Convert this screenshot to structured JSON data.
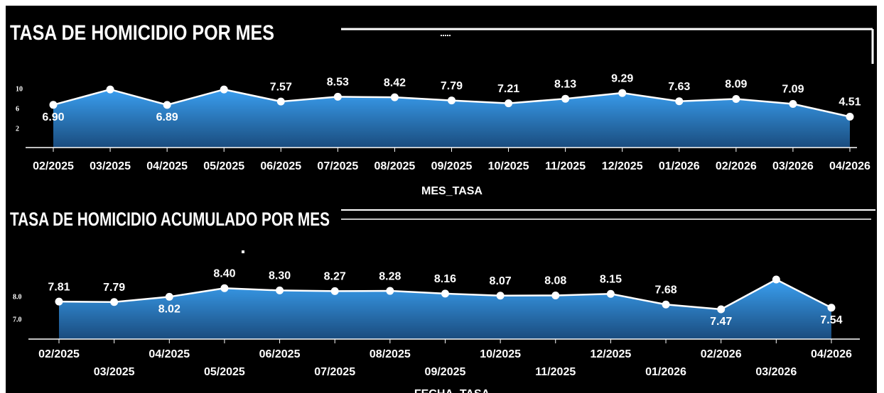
{
  "chart_data": [
    {
      "type": "area",
      "title": "TASA DE HOMICIDIO POR MES",
      "x_label": "MES_TASA",
      "categories": [
        "02/2025",
        "03/2025",
        "04/2025",
        "05/2025",
        "06/2025",
        "07/2025",
        "08/2025",
        "09/2025",
        "10/2025",
        "11/2025",
        "12/2025",
        "01/2026",
        "02/2026",
        "03/2026",
        "04/2026"
      ],
      "values": [
        6.9,
        10.0,
        6.89,
        10.0,
        7.57,
        8.53,
        8.42,
        7.79,
        7.21,
        8.13,
        9.29,
        7.63,
        8.09,
        7.09,
        4.51
      ],
      "value_labels": [
        "6.90",
        null,
        "6.89",
        null,
        "7.57",
        "8.53",
        "8.42",
        "7.79",
        "7.21",
        "8.13",
        "9.29",
        "7.63",
        "8.09",
        "7.09",
        "4.51"
      ],
      "ylim": [
        -1.7,
        12.3
      ],
      "yticks": [
        10,
        6,
        2
      ],
      "color": "#3a9ff0"
    },
    {
      "type": "area",
      "title": "TASA DE HOMICIDIO ACUMULADO POR MES",
      "x_label": "FECHA_TASA",
      "categories": [
        "02/2025",
        "03/2025",
        "04/2025",
        "05/2025",
        "06/2025",
        "07/2025",
        "08/2025",
        "09/2025",
        "10/2025",
        "11/2025",
        "12/2025",
        "01/2026",
        "02/2026",
        "03/2026",
        "04/2026"
      ],
      "values": [
        7.81,
        7.79,
        8.02,
        8.4,
        8.3,
        8.27,
        8.28,
        8.16,
        8.07,
        8.08,
        8.15,
        7.68,
        7.47,
        8.78,
        7.54
      ],
      "value_labels": [
        "7.81",
        "7.79",
        "8.02",
        "8.40",
        "8.30",
        "8.27",
        "8.28",
        "8.16",
        "8.07",
        "8.08",
        "8.15",
        "7.68",
        "7.47",
        null,
        "7.54"
      ],
      "ylim": [
        6.16,
        9.53
      ],
      "yticks": [
        {
          "value": 8,
          "label": "8.0"
        },
        {
          "value": 7,
          "label": "7.0"
        }
      ],
      "color": "#3a9ff0"
    }
  ]
}
